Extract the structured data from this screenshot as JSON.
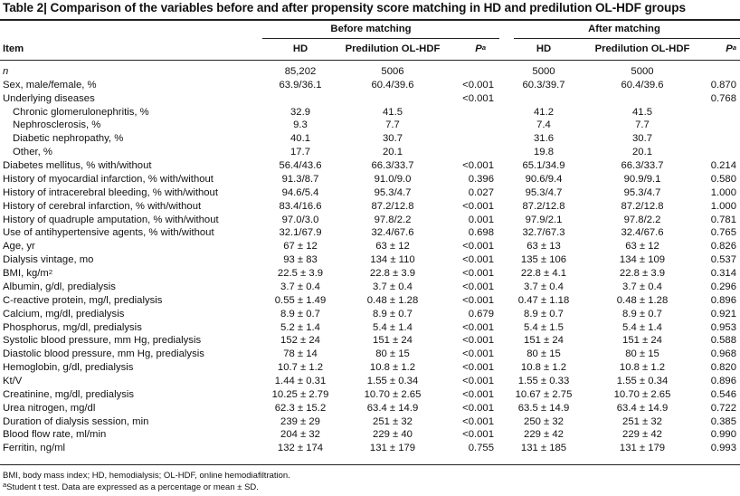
{
  "title": "Table 2| Comparison of the variables before and after propensity score matching in HD and predilution OL-HDF groups",
  "groups": {
    "before": "Before matching",
    "after": "After matching"
  },
  "columns": {
    "item": "Item",
    "hd": "HD",
    "ol": "Predilution OL-HDF",
    "p": "P",
    "p_sup": "a"
  },
  "rows": [
    {
      "label": "n",
      "italic": true,
      "indent": false,
      "v": [
        "85,202",
        "5006",
        "",
        "5000",
        "5000",
        ""
      ]
    },
    {
      "label": "Sex, male/female, %",
      "indent": false,
      "v": [
        "63.9/36.1",
        "60.4/39.6",
        "<0.001",
        "60.3/39.7",
        "60.4/39.6",
        "0.870"
      ]
    },
    {
      "label": "Underlying diseases",
      "indent": false,
      "v": [
        "",
        "",
        "<0.001",
        "",
        "",
        "0.768"
      ]
    },
    {
      "label": "Chronic glomerulonephritis, %",
      "indent": true,
      "v": [
        "32.9",
        "41.5",
        "",
        "41.2",
        "41.5",
        ""
      ]
    },
    {
      "label": "Nephrosclerosis, %",
      "indent": true,
      "v": [
        "9.3",
        "7.7",
        "",
        "7.4",
        "7.7",
        ""
      ]
    },
    {
      "label": "Diabetic nephropathy, %",
      "indent": true,
      "v": [
        "40.1",
        "30.7",
        "",
        "31.6",
        "30.7",
        ""
      ]
    },
    {
      "label": "Other, %",
      "indent": true,
      "v": [
        "17.7",
        "20.1",
        "",
        "19.8",
        "20.1",
        ""
      ]
    },
    {
      "label": "Diabetes mellitus, % with/without",
      "indent": false,
      "v": [
        "56.4/43.6",
        "66.3/33.7",
        "<0.001",
        "65.1/34.9",
        "66.3/33.7",
        "0.214"
      ]
    },
    {
      "label": "History of myocardial infarction, % with/without",
      "indent": false,
      "v": [
        "91.3/8.7",
        "91.0/9.0",
        "0.396",
        "90.6/9.4",
        "90.9/9.1",
        "0.580"
      ]
    },
    {
      "label": "History of intracerebral bleeding, % with/without",
      "indent": false,
      "v": [
        "94.6/5.4",
        "95.3/4.7",
        "0.027",
        "95.3/4.7",
        "95.3/4.7",
        "1.000"
      ]
    },
    {
      "label": "History of cerebral infarction, % with/without",
      "indent": false,
      "v": [
        "83.4/16.6",
        "87.2/12.8",
        "<0.001",
        "87.2/12.8",
        "87.2/12.8",
        "1.000"
      ]
    },
    {
      "label": "History of quadruple amputation, % with/without",
      "indent": false,
      "v": [
        "97.0/3.0",
        "97.8/2.2",
        "0.001",
        "97.9/2.1",
        "97.8/2.2",
        "0.781"
      ]
    },
    {
      "label": "Use of antihypertensive agents, % with/without",
      "indent": false,
      "v": [
        "32.1/67.9",
        "32.4/67.6",
        "0.698",
        "32.7/67.3",
        "32.4/67.6",
        "0.765"
      ]
    },
    {
      "label": "Age, yr",
      "indent": false,
      "v": [
        "67 ± 12",
        "63 ± 12",
        "<0.001",
        "63 ± 13",
        "63 ± 12",
        "0.826"
      ]
    },
    {
      "label": "Dialysis vintage, mo",
      "indent": false,
      "v": [
        "93 ± 83",
        "134 ± 110",
        "<0.001",
        "135 ± 106",
        "134 ± 109",
        "0.537"
      ]
    },
    {
      "label": "BMI, kg/m",
      "label_sup": "2",
      "indent": false,
      "v": [
        "22.5 ± 3.9",
        "22.8 ± 3.9",
        "<0.001",
        "22.8 ± 4.1",
        "22.8 ± 3.9",
        "0.314"
      ]
    },
    {
      "label": "Albumin, g/dl, predialysis",
      "indent": false,
      "v": [
        "3.7 ± 0.4",
        "3.7 ± 0.4",
        "<0.001",
        "3.7 ± 0.4",
        "3.7 ± 0.4",
        "0.296"
      ]
    },
    {
      "label": "C-reactive protein, mg/l, predialysis",
      "indent": false,
      "v": [
        "0.55 ± 1.49",
        "0.48 ± 1.28",
        "<0.001",
        "0.47 ± 1.18",
        "0.48 ± 1.28",
        "0.896"
      ]
    },
    {
      "label": "Calcium, mg/dl, predialysis",
      "indent": false,
      "v": [
        "8.9 ± 0.7",
        "8.9 ± 0.7",
        "0.679",
        "8.9 ± 0.7",
        "8.9 ± 0.7",
        "0.921"
      ]
    },
    {
      "label": "Phosphorus, mg/dl, predialysis",
      "indent": false,
      "v": [
        "5.2 ± 1.4",
        "5.4 ± 1.4",
        "<0.001",
        "5.4 ± 1.5",
        "5.4 ± 1.4",
        "0.953"
      ]
    },
    {
      "label": "Systolic blood pressure, mm Hg, predialysis",
      "indent": false,
      "v": [
        "152 ± 24",
        "151 ± 24",
        "<0.001",
        "151 ± 24",
        "151 ± 24",
        "0.588"
      ]
    },
    {
      "label": "Diastolic blood pressure, mm Hg, predialysis",
      "indent": false,
      "v": [
        "78 ± 14",
        "80 ± 15",
        "<0.001",
        "80 ± 15",
        "80 ± 15",
        "0.968"
      ]
    },
    {
      "label": "Hemoglobin, g/dl, predialysis",
      "indent": false,
      "v": [
        "10.7 ± 1.2",
        "10.8 ± 1.2",
        "<0.001",
        "10.8 ± 1.2",
        "10.8 ± 1.2",
        "0.820"
      ]
    },
    {
      "label": "Kt/V",
      "indent": false,
      "v": [
        "1.44 ± 0.31",
        "1.55 ± 0.34",
        "<0.001",
        "1.55 ± 0.33",
        "1.55 ± 0.34",
        "0.896"
      ]
    },
    {
      "label": "Creatinine, mg/dl, predialysis",
      "indent": false,
      "v": [
        "10.25 ± 2.79",
        "10.70 ± 2.65",
        "<0.001",
        "10.67 ± 2.75",
        "10.70 ± 2.65",
        "0.546"
      ]
    },
    {
      "label": "Urea nitrogen, mg/dl",
      "indent": false,
      "v": [
        "62.3 ± 15.2",
        "63.4 ± 14.9",
        "<0.001",
        "63.5 ± 14.9",
        "63.4 ± 14.9",
        "0.722"
      ]
    },
    {
      "label": "Duration of dialysis session, min",
      "indent": false,
      "v": [
        "239 ± 29",
        "251 ± 32",
        "<0.001",
        "250 ± 32",
        "251 ± 32",
        "0.385"
      ]
    },
    {
      "label": "Blood flow rate, ml/min",
      "indent": false,
      "v": [
        "204 ± 32",
        "229 ± 40",
        "<0.001",
        "229 ± 42",
        "229 ± 42",
        "0.990"
      ]
    },
    {
      "label": "Ferritin, ng/ml",
      "indent": false,
      "v": [
        "132 ± 174",
        "131 ± 179",
        "0.755",
        "131 ± 185",
        "131 ± 179",
        "0.993"
      ]
    }
  ],
  "footnotes": {
    "abbrev": "BMI, body mass index; HD, hemodialysis; OL-HDF, online hemodiafiltration.",
    "a_sup": "a",
    "a_text": "Student t test. Data are expressed as a percentage or mean ± SD."
  }
}
